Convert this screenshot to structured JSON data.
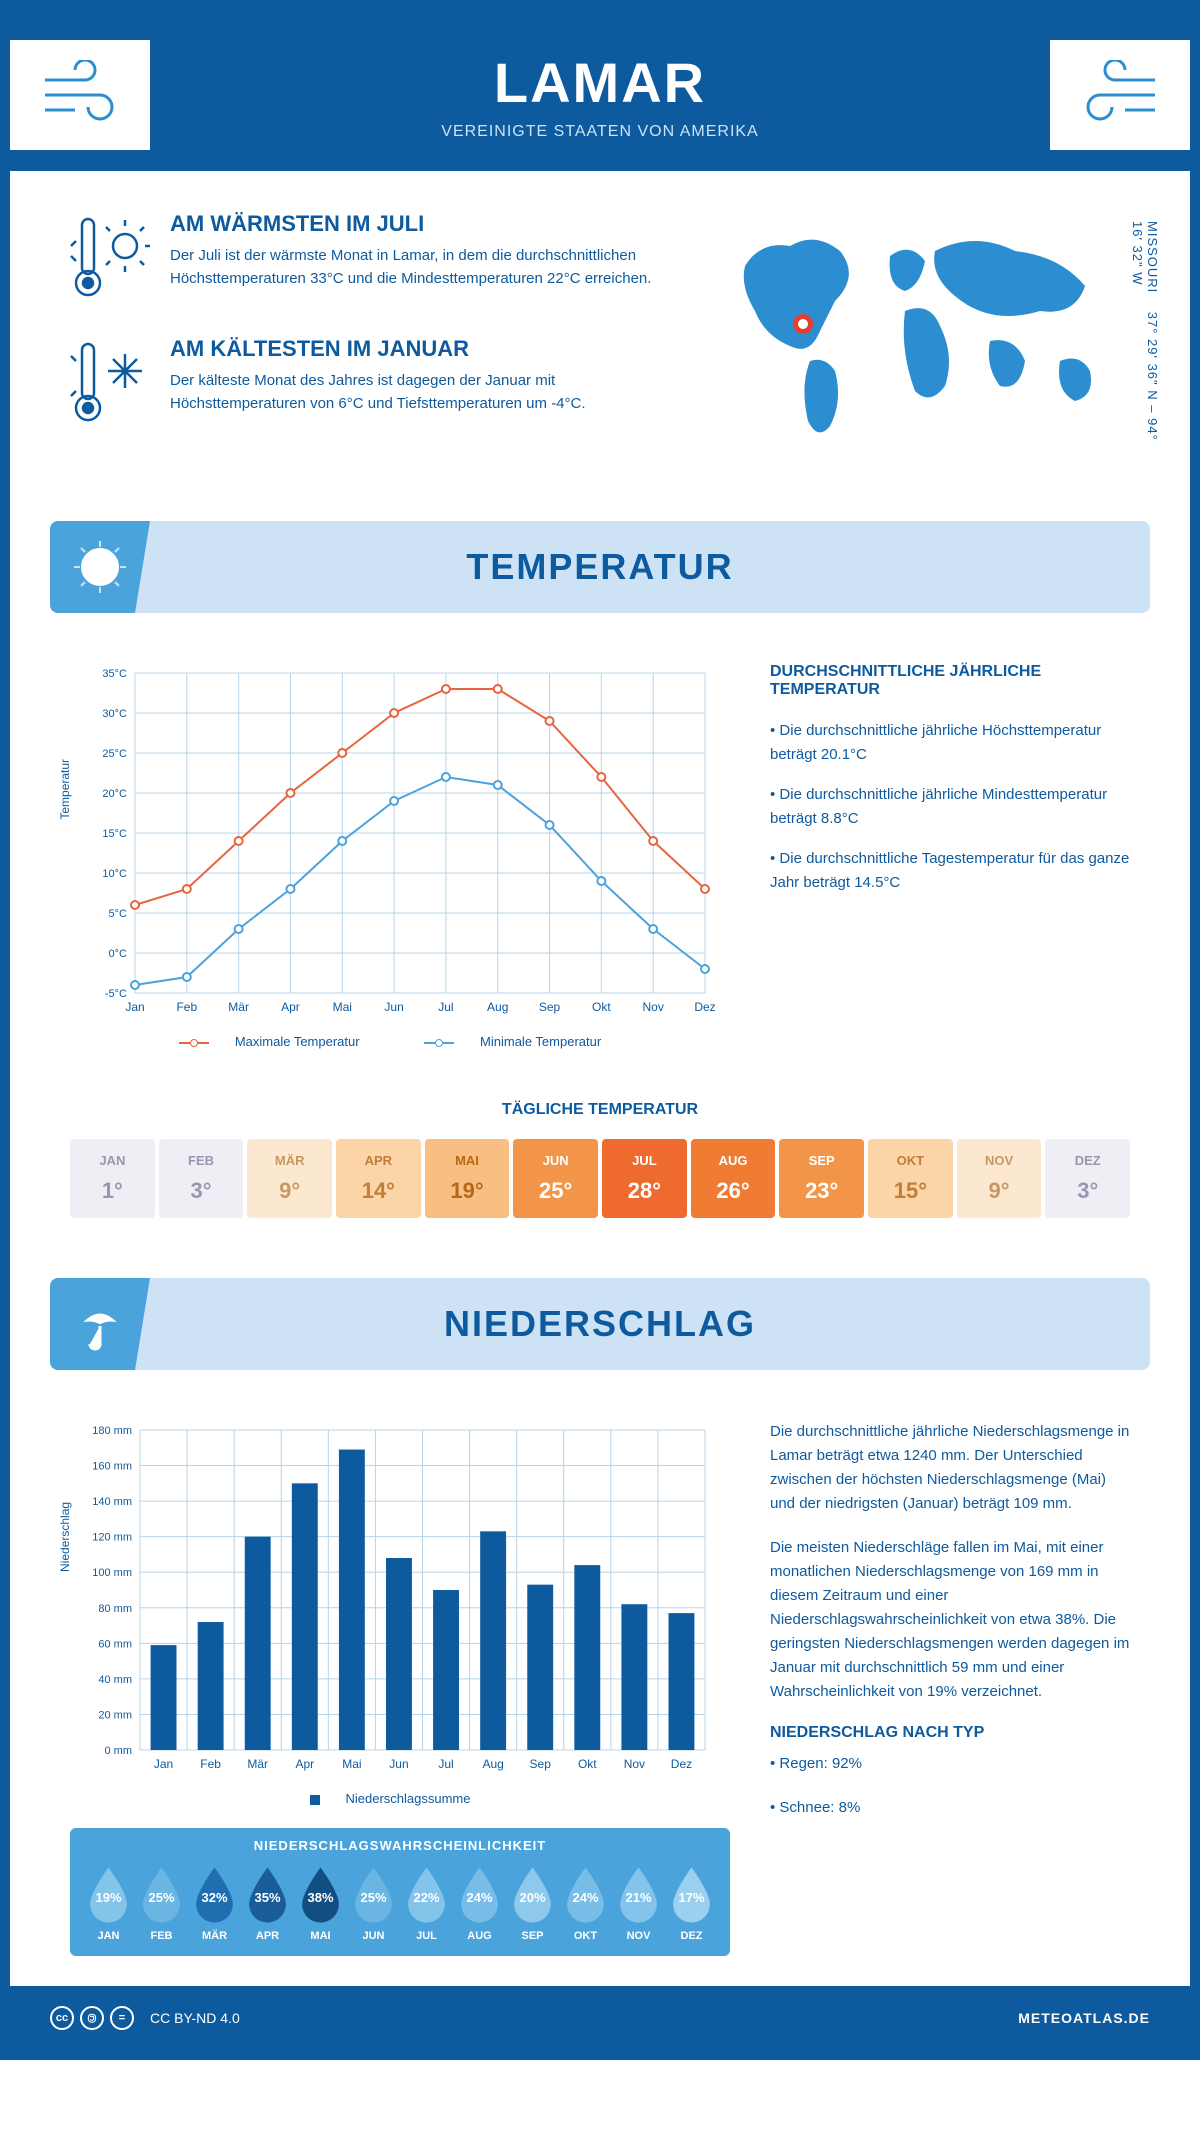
{
  "header": {
    "title": "LAMAR",
    "subtitle": "VEREINIGTE STAATEN VON AMERIKA"
  },
  "coords": {
    "region": "MISSOURI",
    "lat": "37° 29' 36\" N",
    "lon": "94° 16' 32\" W"
  },
  "facts": {
    "warm": {
      "title": "AM WÄRMSTEN IM JULI",
      "text": "Der Juli ist der wärmste Monat in Lamar, in dem die durchschnittlichen Höchsttemperaturen 33°C und die Mindesttemperaturen 22°C erreichen."
    },
    "cold": {
      "title": "AM KÄLTESTEN IM JANUAR",
      "text": "Der kälteste Monat des Jahres ist dagegen der Januar mit Höchsttemperaturen von 6°C und Tiefsttemperaturen um -4°C."
    }
  },
  "months": [
    "Jan",
    "Feb",
    "Mär",
    "Apr",
    "Mai",
    "Jun",
    "Jul",
    "Aug",
    "Sep",
    "Okt",
    "Nov",
    "Dez"
  ],
  "months_upper": [
    "JAN",
    "FEB",
    "MÄR",
    "APR",
    "MAI",
    "JUN",
    "JUL",
    "AUG",
    "SEP",
    "OKT",
    "NOV",
    "DEZ"
  ],
  "temp_section": {
    "title": "TEMPERATUR",
    "info_title": "DURCHSCHNITTLICHE JÄHRLICHE TEMPERATUR",
    "info_p1": "• Die durchschnittliche jährliche Höchsttemperatur beträgt 20.1°C",
    "info_p2": "• Die durchschnittliche jährliche Mindesttemperatur beträgt 8.8°C",
    "info_p3": "• Die durchschnittliche Tagestemperatur für das ganze Jahr beträgt 14.5°C",
    "chart": {
      "axis_y_label": "Temperatur",
      "ylim": [
        -5,
        35
      ],
      "ytick_step": 5,
      "ytick_labels": [
        "-5°C",
        "0°C",
        "5°C",
        "10°C",
        "15°C",
        "20°C",
        "25°C",
        "30°C",
        "35°C"
      ],
      "max_series": {
        "label": "Maximale Temperatur",
        "color": "#e8643c",
        "values": [
          6,
          8,
          14,
          20,
          25,
          30,
          33,
          33,
          29,
          22,
          14,
          8
        ]
      },
      "min_series": {
        "label": "Minimale Temperatur",
        "color": "#4ba3dc",
        "values": [
          -4,
          -3,
          3,
          8,
          14,
          19,
          22,
          21,
          16,
          9,
          3,
          -2
        ]
      },
      "line_width": 2,
      "marker_radius": 4,
      "grid_color": "#b8d4e8",
      "background": "#ffffff"
    },
    "daily_title": "TÄGLICHE TEMPERATUR",
    "daily": {
      "values": [
        "1°",
        "3°",
        "9°",
        "14°",
        "19°",
        "25°",
        "28°",
        "26°",
        "23°",
        "15°",
        "9°",
        "3°"
      ],
      "bg_colors": [
        "#f0eef5",
        "#f0eef5",
        "#fce8d0",
        "#fbd4a8",
        "#f9be81",
        "#f39549",
        "#ee6a2e",
        "#f07b33",
        "#f39549",
        "#fbd4a8",
        "#fce8d0",
        "#f0eef5"
      ],
      "text_colors": [
        "#9b95b0",
        "#9b95b0",
        "#c99860",
        "#c07e38",
        "#b56818",
        "#ffffff",
        "#ffffff",
        "#ffffff",
        "#ffffff",
        "#c07e38",
        "#c99860",
        "#9b95b0"
      ]
    }
  },
  "precip_section": {
    "title": "NIEDERSCHLAG",
    "text1": "Die durchschnittliche jährliche Niederschlagsmenge in Lamar beträgt etwa 1240 mm. Der Unterschied zwischen der höchsten Niederschlagsmenge (Mai) und der niedrigsten (Januar) beträgt 109 mm.",
    "text2": "Die meisten Niederschläge fallen im Mai, mit einer monatlichen Niederschlagsmenge von 169 mm in diesem Zeitraum und einer Niederschlagswahrscheinlichkeit von etwa 38%. Die geringsten Niederschlagsmengen werden dagegen im Januar mit durchschnittlich 59 mm und einer Wahrscheinlichkeit von 19% verzeichnet.",
    "type_title": "NIEDERSCHLAG NACH TYP",
    "type_rain": "• Regen: 92%",
    "type_snow": "• Schnee: 8%",
    "chart": {
      "axis_y_label": "Niederschlag",
      "ylim": [
        0,
        180
      ],
      "ytick_step": 20,
      "ytick_labels": [
        "0 mm",
        "20 mm",
        "40 mm",
        "60 mm",
        "80 mm",
        "100 mm",
        "120 mm",
        "140 mm",
        "160 mm",
        "180 mm"
      ],
      "legend": "Niederschlagssumme",
      "bar_color": "#0d5a9e",
      "grid_color": "#b8d4e8",
      "values": [
        59,
        72,
        120,
        150,
        169,
        108,
        90,
        123,
        93,
        104,
        82,
        77
      ]
    },
    "prob_title": "NIEDERSCHLAGSWAHRSCHEINLICHKEIT",
    "prob": {
      "values": [
        "19%",
        "25%",
        "32%",
        "35%",
        "38%",
        "25%",
        "22%",
        "24%",
        "20%",
        "24%",
        "21%",
        "17%"
      ],
      "fill_colors": [
        "#84c4ea",
        "#6bb5e3",
        "#1f6fb0",
        "#1a5d99",
        "#134e82",
        "#6bb5e3",
        "#84c4ea",
        "#77bde7",
        "#8ec9ec",
        "#77bde7",
        "#84c4ea",
        "#9bd0ef"
      ]
    }
  },
  "footer": {
    "license": "CC BY-ND 4.0",
    "brand": "METEOATLAS.DE"
  }
}
